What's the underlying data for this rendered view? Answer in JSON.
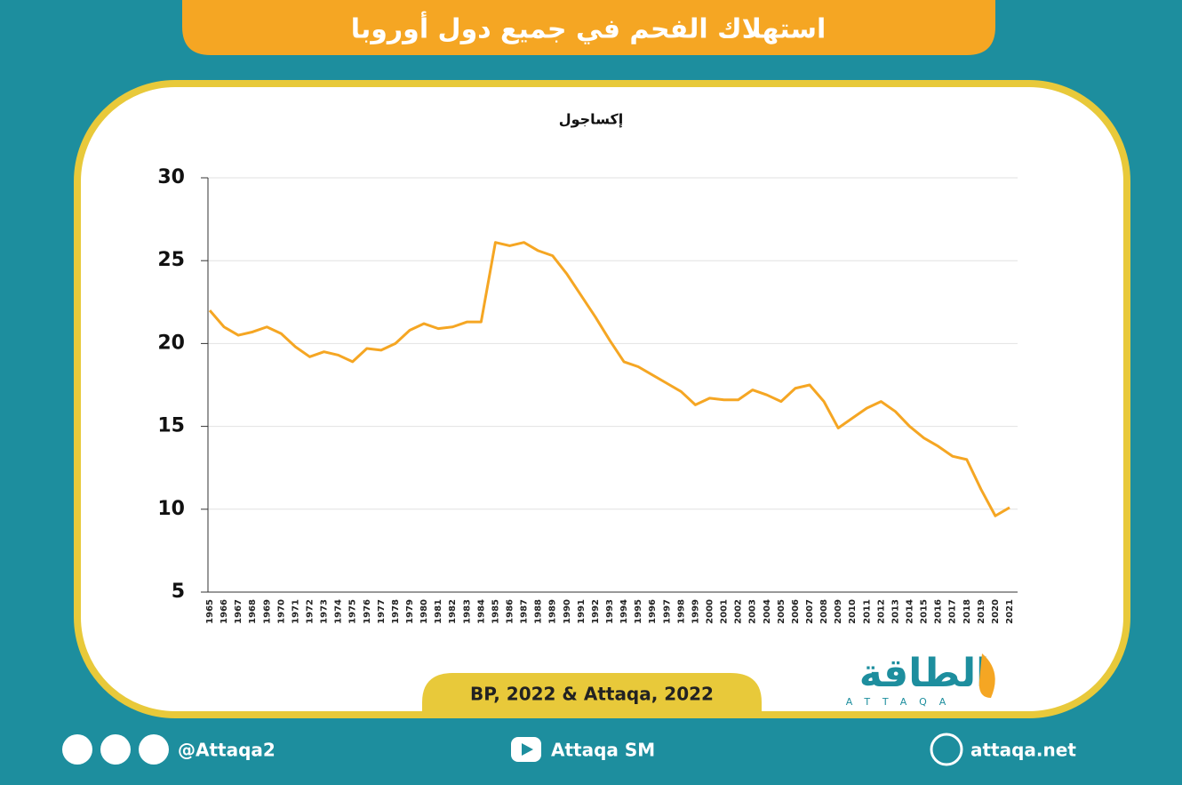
{
  "chart_data": {
    "type": "line",
    "title": "استهلاك الفحم في جميع دول أوروبا",
    "y_label": "إكساجول",
    "categories": [
      "1965",
      "1966",
      "1967",
      "1968",
      "1969",
      "1970",
      "1971",
      "1972",
      "1973",
      "1974",
      "1975",
      "1976",
      "1977",
      "1978",
      "1979",
      "1980",
      "1981",
      "1982",
      "1983",
      "1984",
      "1985",
      "1986",
      "1987",
      "1988",
      "1989",
      "1990",
      "1991",
      "1992",
      "1993",
      "1994",
      "1995",
      "1996",
      "1997",
      "1998",
      "1999",
      "2000",
      "2001",
      "2002",
      "2003",
      "2004",
      "2005",
      "2006",
      "2007",
      "2008",
      "2009",
      "2010",
      "2011",
      "2012",
      "2013",
      "2014",
      "2015",
      "2016",
      "2017",
      "2018",
      "2019",
      "2020",
      "2021"
    ],
    "values": [
      22.0,
      21.0,
      20.5,
      20.7,
      21.0,
      20.6,
      19.8,
      19.2,
      19.5,
      19.3,
      18.9,
      19.7,
      19.6,
      20.0,
      20.8,
      21.2,
      20.9,
      21.0,
      21.3,
      21.3,
      26.1,
      25.9,
      26.1,
      25.6,
      25.3,
      24.2,
      22.9,
      21.6,
      20.2,
      18.9,
      18.6,
      18.1,
      17.6,
      17.1,
      16.3,
      16.7,
      16.6,
      16.6,
      17.2,
      16.9,
      16.5,
      17.3,
      17.5,
      16.5,
      14.9,
      15.5,
      16.1,
      16.5,
      15.9,
      15.0,
      14.3,
      13.8,
      13.2,
      13.0,
      11.2,
      9.6,
      10.1
    ],
    "color": "#f5a623",
    "ylim": [
      5,
      30
    ],
    "yticks": [
      5,
      10,
      15,
      20,
      25,
      30
    ],
    "grid": true,
    "source": "BP, 2022 & Attaqa, 2022"
  },
  "branding": {
    "logo": "الطاقة",
    "logo_latin": "ATTAQA",
    "social": "@Attaqa2",
    "youtube": "Attaqa SM",
    "website": "attaqa.net"
  }
}
